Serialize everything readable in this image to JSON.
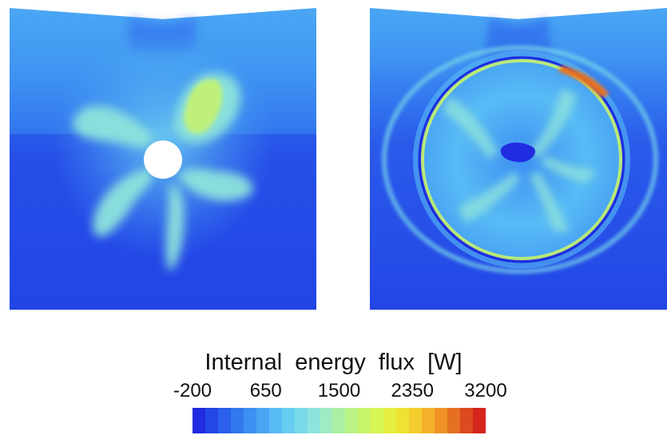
{
  "colorbar": {
    "title": "Internal  energy  flux  [W]",
    "ticks": [
      "-200",
      "650",
      "1500",
      "2350",
      "3200"
    ],
    "range": [
      -200,
      3200
    ],
    "colors": [
      "#1f2ce0",
      "#2346e6",
      "#2a60ec",
      "#3378ef",
      "#3d8ff2",
      "#4aa6f4",
      "#58bbf5",
      "#67cdf2",
      "#79daea",
      "#8ee3dc",
      "#9febc2",
      "#abf0a2",
      "#b9f285",
      "#c8f46a",
      "#d7f553",
      "#e4ef3f",
      "#efe233",
      "#f4cc2e",
      "#f4b22a",
      "#ef9326",
      "#e67022",
      "#dd4a1f",
      "#d4261c"
    ]
  }
}
